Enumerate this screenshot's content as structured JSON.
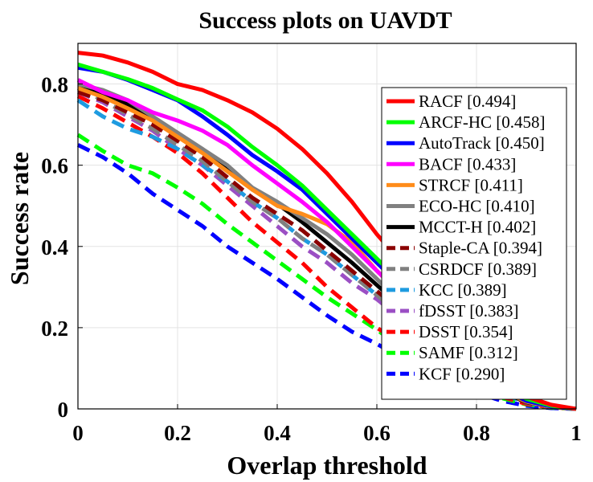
{
  "chart_data": {
    "type": "line",
    "title": "Success plots on UAVDT",
    "xlabel": "Overlap threshold",
    "ylabel": "Success rate",
    "xlim": [
      0,
      1
    ],
    "ylim": [
      0,
      0.9
    ],
    "grid": true,
    "legend_position": "right",
    "x_ticks": [
      {
        "value": 0,
        "label": "0"
      },
      {
        "value": 0.2,
        "label": "0.2"
      },
      {
        "value": 0.4,
        "label": "0.4"
      },
      {
        "value": 0.6,
        "label": "0.6"
      },
      {
        "value": 0.8,
        "label": "0.8"
      },
      {
        "value": 1,
        "label": "1"
      }
    ],
    "y_ticks": [
      {
        "value": 0,
        "label": "0"
      },
      {
        "value": 0.2,
        "label": "0.2"
      },
      {
        "value": 0.4,
        "label": "0.4"
      },
      {
        "value": 0.6,
        "label": "0.6"
      },
      {
        "value": 0.8,
        "label": "0.8"
      }
    ],
    "x": [
      0,
      0.05,
      0.1,
      0.15,
      0.2,
      0.25,
      0.3,
      0.35,
      0.4,
      0.45,
      0.5,
      0.55,
      0.6,
      0.65,
      0.7,
      0.75,
      0.8,
      0.85,
      0.9,
      0.95,
      1
    ],
    "series": [
      {
        "name": "RACF [0.494]",
        "color": "#ff0000",
        "dash": "solid",
        "values": [
          0.877,
          0.87,
          0.853,
          0.83,
          0.8,
          0.785,
          0.76,
          0.73,
          0.69,
          0.64,
          0.58,
          0.51,
          0.43,
          0.36,
          0.28,
          0.2,
          0.13,
          0.07,
          0.03,
          0.01,
          0.0
        ]
      },
      {
        "name": "ARCF-HC [0.458]",
        "color": "#00ff00",
        "dash": "solid",
        "values": [
          0.848,
          0.83,
          0.812,
          0.79,
          0.762,
          0.735,
          0.695,
          0.645,
          0.6,
          0.55,
          0.49,
          0.43,
          0.37,
          0.31,
          0.24,
          0.17,
          0.11,
          0.06,
          0.025,
          0.008,
          0.0
        ]
      },
      {
        "name": "AutoTrack [0.450]",
        "color": "#0000ff",
        "dash": "solid",
        "values": [
          0.84,
          0.83,
          0.81,
          0.785,
          0.76,
          0.72,
          0.675,
          0.625,
          0.585,
          0.54,
          0.48,
          0.42,
          0.36,
          0.3,
          0.23,
          0.16,
          0.1,
          0.05,
          0.02,
          0.006,
          0.0
        ]
      },
      {
        "name": "BACF [0.433]",
        "color": "#ff00ff",
        "dash": "solid",
        "values": [
          0.81,
          0.78,
          0.76,
          0.73,
          0.71,
          0.685,
          0.65,
          0.6,
          0.555,
          0.51,
          0.46,
          0.4,
          0.34,
          0.28,
          0.21,
          0.15,
          0.095,
          0.05,
          0.02,
          0.006,
          0.0
        ]
      },
      {
        "name": "STRCF [0.411]",
        "color": "#ff8c1a",
        "dash": "solid",
        "values": [
          0.79,
          0.768,
          0.74,
          0.71,
          0.67,
          0.63,
          0.585,
          0.54,
          0.5,
          0.48,
          0.455,
          0.41,
          0.34,
          0.28,
          0.21,
          0.14,
          0.085,
          0.045,
          0.018,
          0.005,
          0.0
        ]
      },
      {
        "name": "ECO-HC [0.410]",
        "color": "#808080",
        "dash": "solid",
        "values": [
          0.8,
          0.785,
          0.76,
          0.72,
          0.68,
          0.64,
          0.6,
          0.545,
          0.51,
          0.47,
          0.43,
          0.38,
          0.32,
          0.26,
          0.2,
          0.14,
          0.085,
          0.045,
          0.018,
          0.005,
          0.0
        ]
      },
      {
        "name": "MCCT-H [0.402]",
        "color": "#000000",
        "dash": "solid",
        "values": [
          0.79,
          0.775,
          0.75,
          0.715,
          0.675,
          0.635,
          0.59,
          0.54,
          0.505,
          0.46,
          0.41,
          0.36,
          0.305,
          0.25,
          0.19,
          0.13,
          0.08,
          0.042,
          0.017,
          0.005,
          0.0
        ]
      },
      {
        "name": "Staple-CA [0.394]",
        "color": "#8b0000",
        "dash": "dashed",
        "values": [
          0.78,
          0.76,
          0.73,
          0.7,
          0.66,
          0.62,
          0.57,
          0.52,
          0.48,
          0.44,
          0.39,
          0.34,
          0.29,
          0.24,
          0.18,
          0.125,
          0.078,
          0.04,
          0.016,
          0.005,
          0.0
        ]
      },
      {
        "name": "CSRDCF [0.389]",
        "color": "#808080",
        "dash": "dashed",
        "values": [
          0.79,
          0.76,
          0.725,
          0.69,
          0.65,
          0.61,
          0.56,
          0.51,
          0.47,
          0.42,
          0.38,
          0.33,
          0.28,
          0.23,
          0.18,
          0.125,
          0.078,
          0.04,
          0.016,
          0.005,
          0.0
        ]
      },
      {
        "name": "KCC [0.389]",
        "color": "#1e9be0",
        "dash": "dashed",
        "values": [
          0.76,
          0.72,
          0.69,
          0.67,
          0.64,
          0.6,
          0.56,
          0.51,
          0.47,
          0.42,
          0.38,
          0.33,
          0.28,
          0.23,
          0.18,
          0.125,
          0.075,
          0.038,
          0.015,
          0.004,
          0.0
        ]
      },
      {
        "name": "fDSST [0.383]",
        "color": "#9b4fc4",
        "dash": "dashed",
        "values": [
          0.78,
          0.755,
          0.72,
          0.685,
          0.64,
          0.6,
          0.55,
          0.5,
          0.45,
          0.4,
          0.36,
          0.31,
          0.27,
          0.22,
          0.17,
          0.12,
          0.075,
          0.04,
          0.016,
          0.005,
          0.0
        ]
      },
      {
        "name": "DSST [0.354]",
        "color": "#ff0000",
        "dash": "dashed",
        "values": [
          0.77,
          0.74,
          0.705,
          0.67,
          0.63,
          0.58,
          0.52,
          0.46,
          0.41,
          0.36,
          0.3,
          0.25,
          0.2,
          0.16,
          0.12,
          0.085,
          0.055,
          0.03,
          0.012,
          0.004,
          0.0
        ]
      },
      {
        "name": "SAMF [0.312]",
        "color": "#00ff00",
        "dash": "dashed",
        "values": [
          0.675,
          0.635,
          0.6,
          0.58,
          0.545,
          0.505,
          0.455,
          0.41,
          0.365,
          0.32,
          0.275,
          0.235,
          0.195,
          0.15,
          0.11,
          0.078,
          0.05,
          0.027,
          0.011,
          0.003,
          0.0
        ]
      },
      {
        "name": "KCF [0.290]",
        "color": "#0000ff",
        "dash": "dashed",
        "values": [
          0.65,
          0.62,
          0.58,
          0.53,
          0.49,
          0.45,
          0.4,
          0.36,
          0.32,
          0.275,
          0.23,
          0.19,
          0.16,
          0.125,
          0.095,
          0.065,
          0.04,
          0.02,
          0.008,
          0.002,
          0.0
        ]
      }
    ]
  }
}
